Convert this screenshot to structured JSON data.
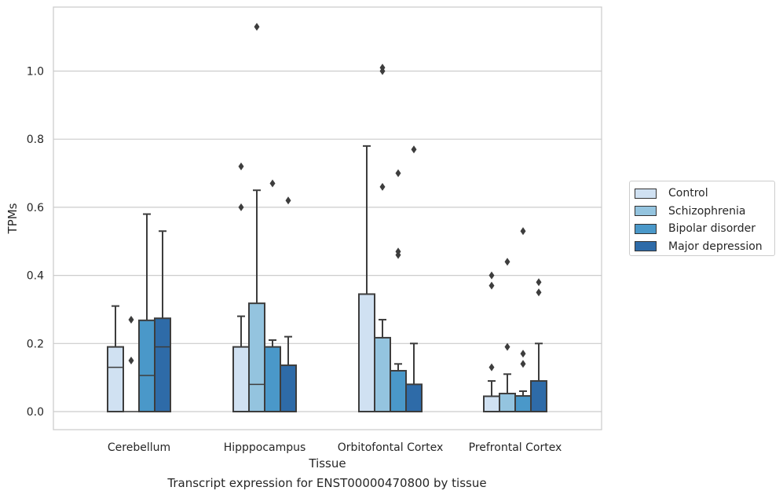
{
  "chart_data": {
    "type": "box",
    "title": "",
    "xlabel": "Tissue",
    "ylabel": "TPMs",
    "caption": "Transcript expression for ENST00000470800 by tissue",
    "ylim": [
      -0.055,
      1.2
    ],
    "yticks": [
      "0.0",
      "0.2",
      "0.4",
      "0.6",
      "0.8",
      "1.0"
    ],
    "grid": true,
    "legend_position": "right",
    "categories": [
      "Cerebellum",
      "Hipppocampus",
      "Orbitofontal Cortex",
      "Prefrontal Cortex"
    ],
    "series": [
      {
        "name": "Control",
        "color": "#d0e1f2",
        "boxes": [
          {
            "min": 0.0,
            "q1": 0.0,
            "median": 0.13,
            "q3": 0.19,
            "max": 0.31,
            "outliers": []
          },
          {
            "min": 0.0,
            "q1": 0.0,
            "median": 0.0,
            "q3": 0.19,
            "max": 0.28,
            "outliers": [
              0.6,
              0.72
            ]
          },
          {
            "min": 0.0,
            "q1": 0.0,
            "median": 0.0,
            "q3": 0.345,
            "max": 0.78,
            "outliers": []
          },
          {
            "min": 0.0,
            "q1": 0.0,
            "median": 0.0,
            "q3": 0.045,
            "max": 0.09,
            "outliers": [
              0.13,
              0.37,
              0.4
            ]
          }
        ]
      },
      {
        "name": "Schizophrenia",
        "color": "#94c4df",
        "boxes": [
          {
            "min": 0.0,
            "q1": 0.0,
            "median": 0.0,
            "q3": 0.0,
            "max": 0.0,
            "outliers": [
              0.15,
              0.27
            ]
          },
          {
            "min": 0.0,
            "q1": 0.0,
            "median": 0.08,
            "q3": 0.318,
            "max": 0.65,
            "outliers": [
              1.13
            ]
          },
          {
            "min": 0.0,
            "q1": 0.0,
            "median": 0.0,
            "q3": 0.217,
            "max": 0.27,
            "outliers": [
              0.66,
              1.0,
              1.01
            ]
          },
          {
            "min": 0.0,
            "q1": 0.0,
            "median": 0.0,
            "q3": 0.053,
            "max": 0.11,
            "outliers": [
              0.19,
              0.44
            ]
          }
        ]
      },
      {
        "name": "Bipolar disorder",
        "color": "#4a98c9",
        "boxes": [
          {
            "min": 0.0,
            "q1": 0.0,
            "median": 0.106,
            "q3": 0.268,
            "max": 0.58,
            "outliers": []
          },
          {
            "min": 0.0,
            "q1": 0.0,
            "median": 0.0,
            "q3": 0.19,
            "max": 0.21,
            "outliers": [
              0.67
            ]
          },
          {
            "min": 0.0,
            "q1": 0.0,
            "median": 0.0,
            "q3": 0.12,
            "max": 0.14,
            "outliers": [
              0.46,
              0.47,
              0.7
            ]
          },
          {
            "min": 0.0,
            "q1": 0.0,
            "median": 0.0,
            "q3": 0.046,
            "max": 0.06,
            "outliers": [
              0.14,
              0.17,
              0.53
            ]
          }
        ]
      },
      {
        "name": "Major depression",
        "color": "#2e6ba8",
        "boxes": [
          {
            "min": 0.0,
            "q1": 0.0,
            "median": 0.19,
            "q3": 0.274,
            "max": 0.53,
            "outliers": []
          },
          {
            "min": 0.0,
            "q1": 0.0,
            "median": 0.0,
            "q3": 0.136,
            "max": 0.22,
            "outliers": [
              0.62
            ]
          },
          {
            "min": 0.0,
            "q1": 0.0,
            "median": 0.0,
            "q3": 0.08,
            "max": 0.2,
            "outliers": [
              0.77
            ]
          },
          {
            "min": 0.0,
            "q1": 0.0,
            "median": 0.0,
            "q3": 0.09,
            "max": 0.2,
            "outliers": [
              0.35,
              0.38
            ]
          }
        ]
      }
    ]
  }
}
